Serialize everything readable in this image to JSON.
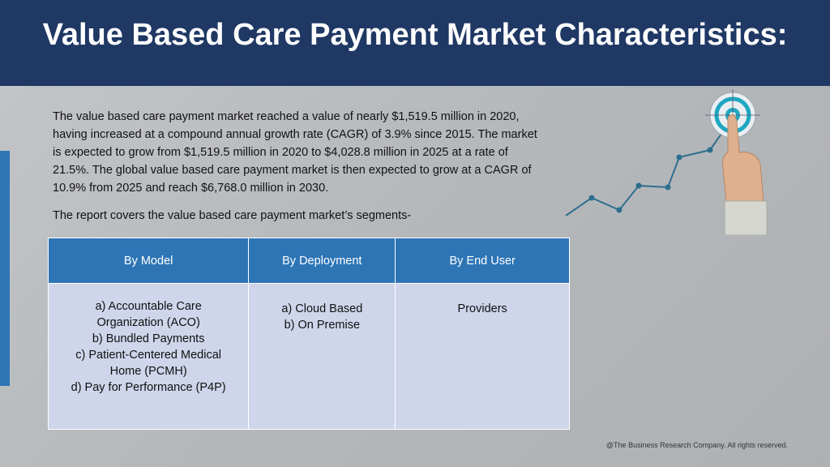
{
  "title": "Value Based Care Payment Market Characteristics:",
  "intro": "The value based care payment market reached a value of nearly $1,519.5 million in 2020, having increased at a compound annual growth rate (CAGR) of 3.9% since 2015. The market is expected to grow from $1,519.5 million in 2020 to $4,028.8 million in 2025 at a rate of 21.5%. The global value based care payment market is then expected to grow at a CAGR of 10.9% from 2025 and reach $6,768.0 million in 2030.",
  "segments_note": "The report covers the value based care payment market’s segments-",
  "table": {
    "headers": [
      "By Model",
      "By Deployment",
      "By End User"
    ],
    "model_items": [
      "a) Accountable Care Organization (ACO)",
      "b) Bundled Payments",
      "c) Patient-Centered Medical Home (PCMH)",
      "d) Pay for Performance (P4P)"
    ],
    "deployment_items": [
      "a) Cloud Based",
      "b) On Premise"
    ],
    "end_user_items": [
      "Providers"
    ]
  },
  "footer": "@The Business Research Company. All rights reserved.",
  "colors": {
    "header_bg": "#1f3864",
    "table_header_bg": "#2e75b6",
    "table_cell_bg": "#cfd5ea",
    "accent": "#2e75b6"
  },
  "graphic_icons": [
    "growth-line-icon",
    "target-icon",
    "pointing-hand-icon"
  ]
}
